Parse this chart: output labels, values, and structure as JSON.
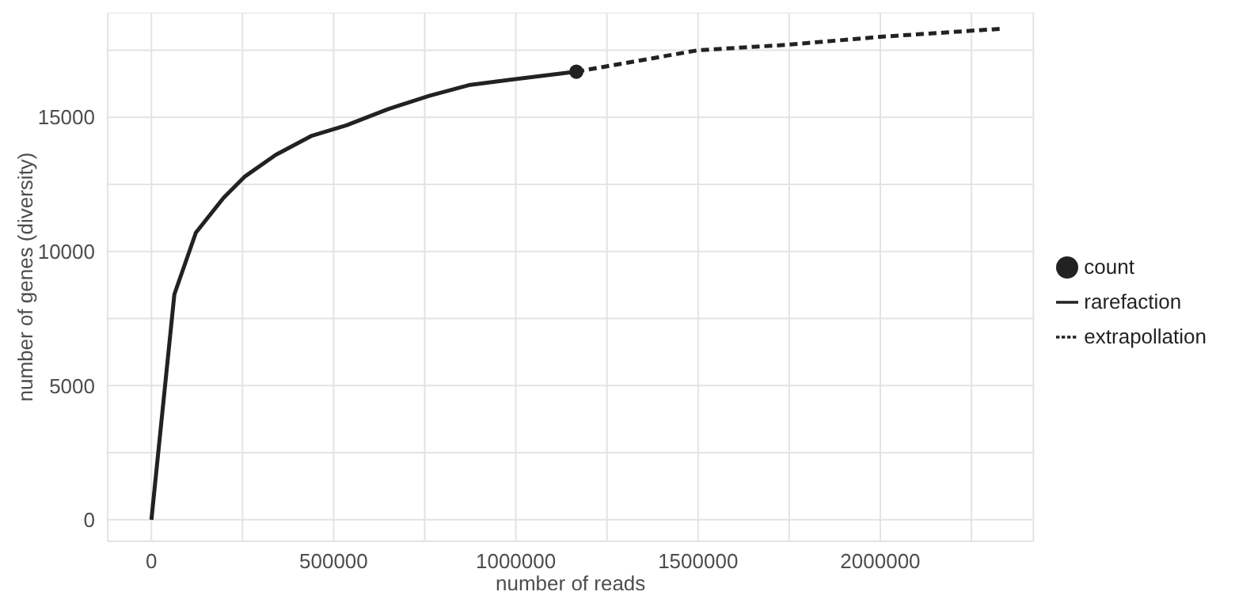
{
  "chart_data": {
    "type": "line",
    "xlabel": "number of reads",
    "ylabel": "number of genes (diversity)",
    "xlim": [
      -120000,
      2420000
    ],
    "ylim": [
      -800,
      18900
    ],
    "xticks": [
      0,
      {
        "value": 250000,
        "label": null
      },
      500000,
      {
        "value": 750000,
        "label": null
      },
      1000000,
      {
        "value": 1250000,
        "label": null
      },
      1500000,
      {
        "value": 1750000,
        "label": null
      },
      2000000,
      {
        "value": 2250000,
        "label": null
      }
    ],
    "yticks": [
      0,
      {
        "value": 2500,
        "label": null
      },
      5000,
      {
        "value": 7500,
        "label": null
      },
      10000,
      {
        "value": 12500,
        "label": null
      },
      15000,
      {
        "value": 17500,
        "label": null
      }
    ],
    "grid": true,
    "legend": "right",
    "series": [
      {
        "name": "count",
        "type": "scatter",
        "marker": "circle",
        "color": "#222222",
        "x": [
          1166000
        ],
        "values": [
          16700
        ]
      },
      {
        "name": "rarefaction",
        "line_style": "solid",
        "color": "#222222",
        "x": [
          0,
          63000,
          122000,
          198000,
          257000,
          341000,
          438000,
          535000,
          648000,
          762000,
          871000,
          985000,
          1166000
        ],
        "values": [
          0,
          8400,
          10700,
          12000,
          12800,
          13600,
          14300,
          14700,
          15300,
          15800,
          16200,
          16400,
          16700
        ]
      },
      {
        "name": "extrapollation",
        "line_style": "dashed",
        "color": "#222222",
        "x": [
          1166000,
          1500000,
          1742000,
          2000000,
          2332000
        ],
        "values": [
          16700,
          17500,
          17700,
          18000,
          18300
        ]
      }
    ]
  }
}
